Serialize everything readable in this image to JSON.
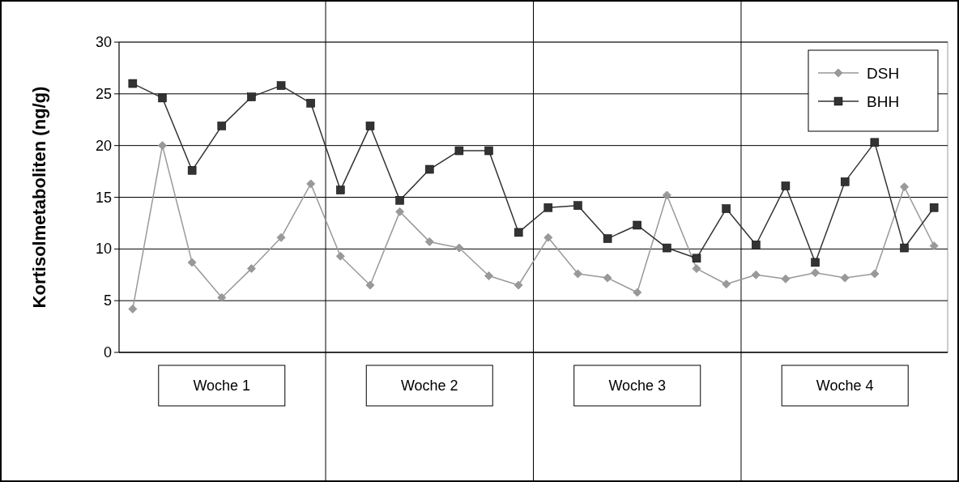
{
  "chart_data": {
    "type": "line",
    "ylabel": "Kortisolmetaboliten (ng/g)",
    "categories": [
      null,
      null,
      null,
      null,
      null,
      null,
      null,
      null,
      null,
      null,
      null,
      null,
      null,
      null,
      null,
      null,
      null,
      null,
      null,
      null,
      null,
      null,
      null,
      null,
      null,
      null,
      null,
      null
    ],
    "annotations": [
      "Woche 1",
      "Woche 2",
      "Woche 3",
      "Woche 4"
    ],
    "ylim": [
      0,
      30
    ],
    "yticks": [
      0,
      5,
      10,
      15,
      20,
      25,
      30
    ],
    "grid": "y",
    "legend": "top right",
    "series": [
      {
        "name": "DSH",
        "color": "#999999",
        "marker": "diamond",
        "values": [
          4.2,
          20,
          8.7,
          5.3,
          8.1,
          11.1,
          16.3,
          9.3,
          6.5,
          13.6,
          10.7,
          10.1,
          7.4,
          6.5,
          11.1,
          7.6,
          7.2,
          5.8,
          15.2,
          8.1,
          6.6,
          7.5,
          7.1,
          7.7,
          7.2,
          7.6,
          16,
          10.3
        ]
      },
      {
        "name": "BHH",
        "color": "#333333",
        "marker": "square",
        "values": [
          26,
          24.6,
          17.6,
          21.9,
          24.7,
          25.8,
          24.1,
          15.7,
          21.9,
          14.7,
          17.7,
          19.5,
          19.5,
          11.6,
          14,
          14.2,
          11,
          12.3,
          10.1,
          9.1,
          13.9,
          10.4,
          16.1,
          8.7,
          16.5,
          20.3,
          10.1,
          14
        ]
      }
    ]
  }
}
